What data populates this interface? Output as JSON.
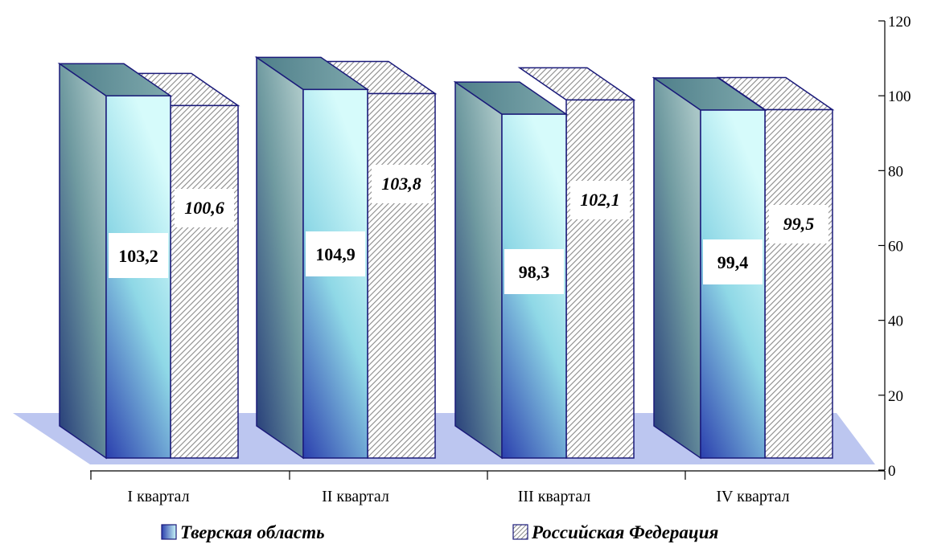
{
  "chart_data": {
    "type": "bar",
    "categories": [
      "I квартал",
      "II квартал",
      "III квартал",
      "IV квартал"
    ],
    "series": [
      {
        "name": "Тверская область",
        "values": [
          103.2,
          104.9,
          98.3,
          99.4
        ],
        "labels": [
          "103,2",
          "104,9",
          "98,3",
          "99,4"
        ]
      },
      {
        "name": "Российская Федерация",
        "values": [
          100.6,
          103.8,
          102.1,
          99.5
        ],
        "labels": [
          "100,6",
          "103,8",
          "102,1",
          "99,5"
        ]
      }
    ],
    "yticks": [
      "0",
      "20",
      "40",
      "60",
      "80",
      "100",
      "120"
    ],
    "ylim": [
      0,
      120
    ],
    "y_axis_side": "right",
    "legend_position": "bottom",
    "style": "3d-bar",
    "colors": {
      "series1_front_light": "#c8f7f7",
      "series1_front_dark": "#2b3fae",
      "series1_side": "#6a9aa0",
      "series2_hatch": "#8a8a8a",
      "floor": "#bcc6f0",
      "outline": "#1a1a7a"
    }
  }
}
